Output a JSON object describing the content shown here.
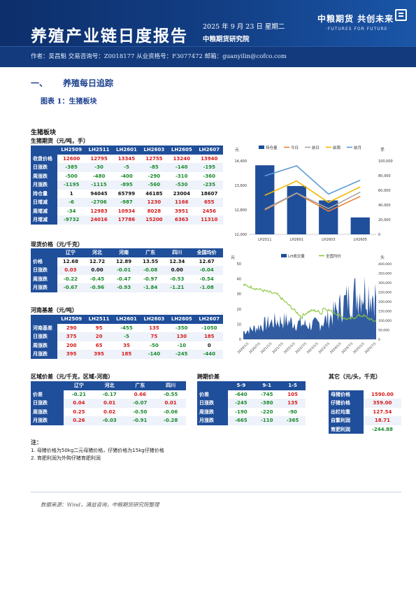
{
  "header": {
    "title": "养殖产业链日度报告",
    "date": "2025 年 9 月 23 日 星期二",
    "institute": "中粮期货研究院",
    "logo": "中粮期货 共创未来",
    "slogan": "·FUTURES FOR FUTURE·",
    "author_line": "作者：吴昌魁  交易咨询号：Z0018177 从业资格号：F3077472  邮箱：guanyilin@cofco.com"
  },
  "section_title": {
    "num": "一、",
    "text": "养殖每日追踪"
  },
  "figure_title": "图表 1：生猪板块",
  "block_title": "生猪板块",
  "futures": {
    "title": "生猪期货（元/吨，手）",
    "columns": [
      "LH2509",
      "LH2511",
      "LH2601",
      "LH2603",
      "LH2605",
      "LH2607"
    ],
    "rows": [
      {
        "label": "收盘价格",
        "values": [
          "12600",
          "12795",
          "13345",
          "12755",
          "13240",
          "13940"
        ]
      },
      {
        "label": "日涨跌",
        "values": [
          "-385",
          "-30",
          "-5",
          "-85",
          "-140",
          "-195"
        ]
      },
      {
        "label": "周涨跌",
        "values": [
          "-500",
          "-480",
          "-400",
          "-290",
          "-310",
          "-360"
        ]
      },
      {
        "label": "月涨跌",
        "values": [
          "-1195",
          "-1115",
          "-895",
          "-560",
          "-530",
          "-235"
        ]
      },
      {
        "label": "持仓量",
        "values": [
          "1",
          "94045",
          "65799",
          "46185",
          "23004",
          "18607"
        ]
      },
      {
        "label": "日增减",
        "values": [
          "-6",
          "-2706",
          "-987",
          "1230",
          "1166",
          "655"
        ]
      },
      {
        "label": "周增减",
        "values": [
          "-34",
          "12983",
          "10934",
          "8028",
          "3951",
          "2456"
        ]
      },
      {
        "label": "月增减",
        "values": [
          "-9732",
          "24016",
          "17786",
          "15200",
          "6363",
          "11310"
        ]
      }
    ]
  },
  "spot": {
    "title": "现货价格（元/千克）",
    "columns": [
      "辽宁",
      "河北",
      "河南",
      "广东",
      "四川",
      "全国均价"
    ],
    "rows": [
      {
        "label": "价格",
        "values": [
          "12.68",
          "12.72",
          "12.89",
          "13.55",
          "12.34",
          "12.67"
        ]
      },
      {
        "label": "日涨跌",
        "values": [
          "0.03",
          "0.00",
          "-0.01",
          "-0.08",
          "0.00",
          "-0.04"
        ]
      },
      {
        "label": "周涨跌",
        "values": [
          "-0.22",
          "-0.45",
          "-0.47",
          "-0.97",
          "-0.53",
          "-0.54"
        ]
      },
      {
        "label": "月涨跌",
        "values": [
          "-0.67",
          "-0.96",
          "-0.93",
          "-1.84",
          "-1.21",
          "-1.08"
        ]
      }
    ]
  },
  "basis": {
    "title": "河南基差（元/吨）",
    "columns": [
      "LH2509",
      "LH2511",
      "LH2601",
      "LH2603",
      "LH2605",
      "LH2607"
    ],
    "rows": [
      {
        "label": "河南基差",
        "values": [
          "290",
          "95",
          "-455",
          "135",
          "-350",
          "-1050"
        ]
      },
      {
        "label": "日涨跌",
        "values": [
          "375",
          "20",
          "-5",
          "75",
          "130",
          "185"
        ]
      },
      {
        "label": "周涨跌",
        "values": [
          "200",
          "65",
          "35",
          "-50",
          "-10",
          "0"
        ]
      },
      {
        "label": "月涨跌",
        "values": [
          "395",
          "395",
          "185",
          "-140",
          "-245",
          "-440"
        ]
      }
    ]
  },
  "region": {
    "title": "区域价差（元/千克，区域-河南）",
    "columns": [
      "辽宁",
      "河北",
      "广东",
      "四川"
    ],
    "rows": [
      {
        "label": "价差",
        "values": [
          "-0.21",
          "-0.17",
          "0.66",
          "-0.55"
        ]
      },
      {
        "label": "日涨跌",
        "values": [
          "0.04",
          "0.01",
          "-0.07",
          "0.01"
        ]
      },
      {
        "label": "周涨跌",
        "values": [
          "0.25",
          "0.02",
          "-0.50",
          "-0.06"
        ]
      },
      {
        "label": "月涨跌",
        "values": [
          "0.26",
          "-0.03",
          "-0.91",
          "-0.28"
        ]
      }
    ]
  },
  "spread": {
    "title": "跨期价差",
    "columns": [
      "5-9",
      "9-1",
      "1-5"
    ],
    "rows": [
      {
        "label": "价差",
        "values": [
          "-640",
          "-745",
          "105"
        ]
      },
      {
        "label": "日涨跌",
        "values": [
          "-245",
          "-380",
          "135"
        ]
      },
      {
        "label": "周涨跌",
        "values": [
          "-190",
          "-220",
          "-90"
        ]
      },
      {
        "label": "月涨跌",
        "values": [
          "-665",
          "-110",
          "-365"
        ]
      }
    ]
  },
  "other": {
    "title": "其它（元/头，千克）",
    "rows": [
      {
        "label": "母猪价格",
        "value": "1590.00"
      },
      {
        "label": "仔猪价格",
        "value": "359.00"
      },
      {
        "label": "出栏均重",
        "value": "127.54"
      },
      {
        "label": "自繁利润",
        "value": "18.71"
      },
      {
        "label": "育肥利润",
        "value": "-244.88"
      }
    ]
  },
  "notes": {
    "title": "注：",
    "items": [
      "1. 母猪价格为50kg二元母猪价格，仔猪价格为15kg仔猪价格",
      "2. 育肥利润为外购仔猪育肥利润"
    ]
  },
  "source": "数据来源：Wind，涌益咨询，中粮期货研究院整理",
  "chart_data": [
    {
      "type": "bar",
      "title": "",
      "legend_position": "top",
      "left_axis": {
        "label": "元",
        "ticks": [
          "12,000",
          "12,800",
          "13,600",
          "14,400"
        ],
        "range": [
          12000,
          14400
        ]
      },
      "right_axis": {
        "label": "手",
        "ticks": [
          "0",
          "20,000",
          "40,000",
          "60,000",
          "80,000",
          "100,000"
        ],
        "range": [
          0,
          100000
        ]
      },
      "categories": [
        "LH2511",
        "LH2601",
        "LH2603",
        "LH2605"
      ],
      "series": [
        {
          "name": "持仓量",
          "kind": "bar",
          "axis": "right",
          "color": "#1f4e9a",
          "values": [
            94045,
            65799,
            46185,
            23004
          ]
        },
        {
          "name": "今日",
          "kind": "line",
          "axis": "left",
          "color": "#e8833a",
          "values": [
            12795,
            13345,
            12755,
            13240
          ]
        },
        {
          "name": "前日",
          "kind": "line",
          "axis": "left",
          "color": "#a5a5a5",
          "values": [
            12825,
            13350,
            12840,
            13380
          ]
        },
        {
          "name": "前周",
          "kind": "line",
          "axis": "left",
          "color": "#f2b800",
          "values": [
            13275,
            13745,
            13045,
            13550
          ]
        },
        {
          "name": "前月",
          "kind": "line",
          "axis": "left",
          "color": "#5b9bd5",
          "values": [
            13910,
            14240,
            13315,
            13770
          ]
        }
      ]
    },
    {
      "type": "area",
      "title": "",
      "legend_position": "top",
      "left_axis": {
        "label": "元",
        "ticks": [
          "0",
          "10",
          "20",
          "30",
          "40",
          "50"
        ],
        "range": [
          0,
          50
        ]
      },
      "right_axis": {
        "label": "头",
        "ticks": [
          "0",
          "50,000",
          "100,000",
          "150,000",
          "200,000",
          "250,000",
          "300,000",
          "350,000",
          "400,000"
        ],
        "range": [
          0,
          400000
        ]
      },
      "x_ticks": [
        "2020/1/1",
        "2020/7/1",
        "2021/1/1",
        "2021/7/1",
        "2022/1/1",
        "2022/7/1",
        "2023/1/1",
        "2023/7/1",
        "2024/1/1",
        "2024/7/1",
        "2025/1/1",
        "2025/7/1"
      ],
      "series": [
        {
          "name": "LH成交量",
          "kind": "area",
          "axis": "right",
          "color": "#1f4e9a"
        },
        {
          "name": "全国均价",
          "kind": "line",
          "axis": "left",
          "color": "#8cc63f"
        }
      ]
    }
  ]
}
